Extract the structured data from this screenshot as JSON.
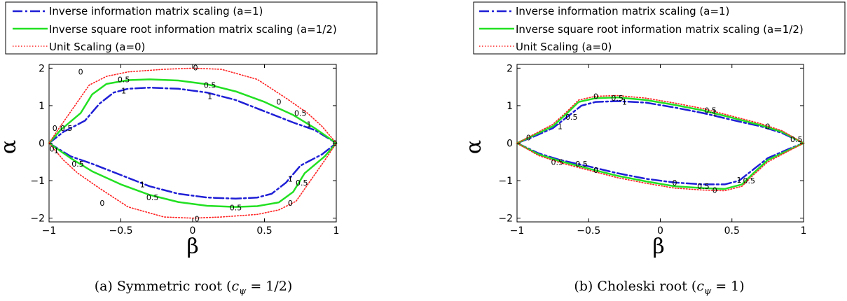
{
  "legend": [
    {
      "label": "Inverse information matrix scaling (a=1)",
      "color": "#1f1fd6",
      "style": "dashdot"
    },
    {
      "label": "Inverse square root information matrix scaling (a=1/2)",
      "color": "#22e022",
      "style": "solid"
    },
    {
      "label": "Unit Scaling (a=0)",
      "color": "#ff2222",
      "style": "dotted"
    }
  ],
  "chart_data": [
    {
      "type": "line",
      "caption": "(a) Symmetric root (c_ψ = 1/2)",
      "caption_parts": {
        "prefix": "(a) Symmetric root (",
        "c": "c",
        "sub": "ψ",
        "suffix": " = 1/2)"
      },
      "xlabel": "β",
      "ylabel": "α",
      "xlim": [
        -1,
        1
      ],
      "ylim": [
        -2.1,
        2.1
      ],
      "xticks": [
        -1,
        -0.5,
        0,
        0.5,
        1
      ],
      "xtick_labels": [
        "−1",
        "−0.5",
        "0",
        "0.5",
        "1"
      ],
      "yticks": [
        -2,
        -1,
        0,
        1,
        2
      ],
      "ytick_labels": [
        "−2",
        "−1",
        "0",
        "1",
        "2"
      ],
      "series": [
        {
          "name": "Inverse information matrix scaling (a=1)",
          "color": "#1f1fd6",
          "style": "dashdot",
          "upper": [
            [
              -1,
              0
            ],
            [
              -0.9,
              0.3
            ],
            [
              -0.75,
              0.6
            ],
            [
              -0.65,
              1.05
            ],
            [
              -0.55,
              1.35
            ],
            [
              -0.45,
              1.45
            ],
            [
              -0.3,
              1.48
            ],
            [
              -0.1,
              1.45
            ],
            [
              0.1,
              1.35
            ],
            [
              0.3,
              1.15
            ],
            [
              0.5,
              0.85
            ],
            [
              0.7,
              0.55
            ],
            [
              0.85,
              0.35
            ],
            [
              1,
              0
            ]
          ],
          "lower": [
            [
              -1,
              0
            ],
            [
              -0.85,
              -0.35
            ],
            [
              -0.7,
              -0.55
            ],
            [
              -0.5,
              -0.85
            ],
            [
              -0.3,
              -1.15
            ],
            [
              -0.1,
              -1.35
            ],
            [
              0.1,
              -1.45
            ],
            [
              0.3,
              -1.48
            ],
            [
              0.45,
              -1.45
            ],
            [
              0.55,
              -1.35
            ],
            [
              0.65,
              -1.05
            ],
            [
              0.75,
              -0.6
            ],
            [
              0.9,
              -0.3
            ],
            [
              1,
              0
            ]
          ]
        },
        {
          "name": "Inverse square root information matrix scaling (a=1/2)",
          "color": "#22e022",
          "style": "solid",
          "upper": [
            [
              -1,
              0
            ],
            [
              -0.92,
              0.35
            ],
            [
              -0.78,
              0.8
            ],
            [
              -0.7,
              1.3
            ],
            [
              -0.6,
              1.58
            ],
            [
              -0.45,
              1.68
            ],
            [
              -0.3,
              1.7
            ],
            [
              -0.1,
              1.67
            ],
            [
              0.1,
              1.57
            ],
            [
              0.3,
              1.38
            ],
            [
              0.5,
              1.1
            ],
            [
              0.7,
              0.75
            ],
            [
              0.85,
              0.4
            ],
            [
              1,
              0
            ]
          ],
          "lower": [
            [
              -1,
              0
            ],
            [
              -0.85,
              -0.4
            ],
            [
              -0.7,
              -0.75
            ],
            [
              -0.5,
              -1.1
            ],
            [
              -0.3,
              -1.38
            ],
            [
              -0.1,
              -1.57
            ],
            [
              0.1,
              -1.67
            ],
            [
              0.3,
              -1.7
            ],
            [
              0.45,
              -1.68
            ],
            [
              0.6,
              -1.58
            ],
            [
              0.7,
              -1.3
            ],
            [
              0.78,
              -0.8
            ],
            [
              0.92,
              -0.35
            ],
            [
              1,
              0
            ]
          ]
        },
        {
          "name": "Unit Scaling (a=0)",
          "color": "#ff2222",
          "style": "dotted",
          "upper": [
            [
              -1,
              0
            ],
            [
              -0.93,
              0.4
            ],
            [
              -0.82,
              1.0
            ],
            [
              -0.72,
              1.55
            ],
            [
              -0.6,
              1.78
            ],
            [
              -0.45,
              1.9
            ],
            [
              -0.2,
              1.97
            ],
            [
              0,
              2.0
            ],
            [
              0.2,
              1.97
            ],
            [
              0.45,
              1.7
            ],
            [
              0.65,
              1.2
            ],
            [
              0.8,
              0.8
            ],
            [
              0.9,
              0.45
            ],
            [
              1,
              0
            ]
          ],
          "lower": [
            [
              -1,
              0
            ],
            [
              -0.9,
              -0.45
            ],
            [
              -0.8,
              -0.8
            ],
            [
              -0.65,
              -1.2
            ],
            [
              -0.45,
              -1.7
            ],
            [
              -0.2,
              -1.97
            ],
            [
              0,
              -2.0
            ],
            [
              0.2,
              -1.97
            ],
            [
              0.45,
              -1.9
            ],
            [
              0.6,
              -1.78
            ],
            [
              0.72,
              -1.55
            ],
            [
              0.82,
              -1.0
            ],
            [
              0.93,
              -0.4
            ],
            [
              1,
              0
            ]
          ]
        }
      ],
      "contour_labels": [
        {
          "text": "0",
          "x": -0.78,
          "y": 1.9
        },
        {
          "text": "0.5",
          "x": -0.48,
          "y": 1.7
        },
        {
          "text": "1",
          "x": -0.48,
          "y": 1.4
        },
        {
          "text": "0",
          "x": 0.02,
          "y": 2.02
        },
        {
          "text": "0.5",
          "x": 0.12,
          "y": 1.55
        },
        {
          "text": "1",
          "x": 0.12,
          "y": 1.25
        },
        {
          "text": "0",
          "x": 0.6,
          "y": 1.1
        },
        {
          "text": "0.5",
          "x": 0.75,
          "y": 0.8
        },
        {
          "text": "1",
          "x": 0.81,
          "y": 0.5
        },
        {
          "text": "0",
          "x": -0.96,
          "y": 0.4
        },
        {
          "text": "0.5",
          "x": -0.88,
          "y": 0.4
        },
        {
          "text": "0",
          "x": -0.98,
          "y": -0.15
        },
        {
          "text": "1",
          "x": -0.95,
          "y": -0.2
        },
        {
          "text": "0.5",
          "x": -0.8,
          "y": -0.55
        },
        {
          "text": "1",
          "x": -0.35,
          "y": -1.1
        },
        {
          "text": "0",
          "x": -0.63,
          "y": -1.6
        },
        {
          "text": "0.5",
          "x": -0.28,
          "y": -1.45
        },
        {
          "text": "0",
          "x": 0.03,
          "y": -2.02
        },
        {
          "text": "0.5",
          "x": 0.3,
          "y": -1.72
        },
        {
          "text": "1",
          "x": 0.68,
          "y": -0.95
        },
        {
          "text": "0.5",
          "x": 0.76,
          "y": -1.05
        },
        {
          "text": "0",
          "x": 0.68,
          "y": -1.6
        },
        {
          "text": "0",
          "x": 0.99,
          "y": 0.0
        }
      ]
    },
    {
      "type": "line",
      "caption": "(b) Choleski root (c_ψ = 1)",
      "caption_parts": {
        "prefix": "(b) Choleski root (",
        "c": "c",
        "sub": "ψ",
        "suffix": " = 1)"
      },
      "xlabel": "β",
      "ylabel": "α",
      "xlim": [
        -1,
        1
      ],
      "ylim": [
        -2.1,
        2.1
      ],
      "xticks": [
        -1,
        -0.5,
        0,
        0.5,
        1
      ],
      "xtick_labels": [
        "−1",
        "−0.5",
        "0",
        "0.5",
        "1"
      ],
      "yticks": [
        -2,
        -1,
        0,
        1,
        2
      ],
      "ytick_labels": [
        "−2",
        "−1",
        "0",
        "1",
        "2"
      ],
      "series": [
        {
          "name": "Inverse information matrix scaling (a=1)",
          "color": "#1f1fd6",
          "style": "dashdot",
          "upper": [
            [
              -1,
              0
            ],
            [
              -0.9,
              0.15
            ],
            [
              -0.75,
              0.4
            ],
            [
              -0.65,
              0.7
            ],
            [
              -0.55,
              1.0
            ],
            [
              -0.45,
              1.1
            ],
            [
              -0.3,
              1.12
            ],
            [
              -0.1,
              1.08
            ],
            [
              0.1,
              0.95
            ],
            [
              0.3,
              0.8
            ],
            [
              0.5,
              0.62
            ],
            [
              0.7,
              0.45
            ],
            [
              0.85,
              0.27
            ],
            [
              1,
              0
            ]
          ],
          "lower": [
            [
              -1,
              0
            ],
            [
              -0.85,
              -0.27
            ],
            [
              -0.7,
              -0.45
            ],
            [
              -0.5,
              -0.62
            ],
            [
              -0.3,
              -0.8
            ],
            [
              -0.1,
              -0.95
            ],
            [
              0.1,
              -1.05
            ],
            [
              0.3,
              -1.1
            ],
            [
              0.45,
              -1.1
            ],
            [
              0.55,
              -1.0
            ],
            [
              0.65,
              -0.7
            ],
            [
              0.75,
              -0.4
            ],
            [
              0.9,
              -0.15
            ],
            [
              1,
              0
            ]
          ]
        },
        {
          "name": "Inverse square root information matrix scaling (a=1/2)",
          "color": "#22e022",
          "style": "solid",
          "upper": [
            [
              -1,
              0
            ],
            [
              -0.9,
              0.18
            ],
            [
              -0.75,
              0.45
            ],
            [
              -0.65,
              0.8
            ],
            [
              -0.57,
              1.1
            ],
            [
              -0.45,
              1.2
            ],
            [
              -0.3,
              1.22
            ],
            [
              -0.1,
              1.15
            ],
            [
              0.1,
              1.02
            ],
            [
              0.3,
              0.87
            ],
            [
              0.5,
              0.68
            ],
            [
              0.7,
              0.48
            ],
            [
              0.85,
              0.3
            ],
            [
              1,
              0
            ]
          ],
          "lower": [
            [
              -1,
              0
            ],
            [
              -0.85,
              -0.3
            ],
            [
              -0.7,
              -0.48
            ],
            [
              -0.5,
              -0.68
            ],
            [
              -0.3,
              -0.87
            ],
            [
              -0.1,
              -1.02
            ],
            [
              0.1,
              -1.15
            ],
            [
              0.3,
              -1.2
            ],
            [
              0.45,
              -1.22
            ],
            [
              0.57,
              -1.1
            ],
            [
              0.65,
              -0.8
            ],
            [
              0.75,
              -0.45
            ],
            [
              0.9,
              -0.18
            ],
            [
              1,
              0
            ]
          ]
        },
        {
          "name": "Unit Scaling (a=0)",
          "color": "#ff2222",
          "style": "dotted",
          "upper": [
            [
              -1,
              0
            ],
            [
              -0.9,
              0.2
            ],
            [
              -0.75,
              0.5
            ],
            [
              -0.65,
              0.85
            ],
            [
              -0.57,
              1.15
            ],
            [
              -0.45,
              1.25
            ],
            [
              -0.3,
              1.27
            ],
            [
              -0.1,
              1.2
            ],
            [
              0.1,
              1.07
            ],
            [
              0.3,
              0.92
            ],
            [
              0.5,
              0.72
            ],
            [
              0.7,
              0.52
            ],
            [
              0.85,
              0.33
            ],
            [
              1,
              0
            ]
          ],
          "lower": [
            [
              -1,
              0
            ],
            [
              -0.85,
              -0.33
            ],
            [
              -0.7,
              -0.52
            ],
            [
              -0.5,
              -0.72
            ],
            [
              -0.3,
              -0.92
            ],
            [
              -0.1,
              -1.07
            ],
            [
              0.1,
              -1.2
            ],
            [
              0.3,
              -1.25
            ],
            [
              0.45,
              -1.27
            ],
            [
              0.57,
              -1.15
            ],
            [
              0.65,
              -0.85
            ],
            [
              0.75,
              -0.5
            ],
            [
              0.9,
              -0.2
            ],
            [
              1,
              0
            ]
          ]
        }
      ],
      "contour_labels": [
        {
          "text": "0.5",
          "x": -0.62,
          "y": 0.7
        },
        {
          "text": "1",
          "x": -0.7,
          "y": 0.45
        },
        {
          "text": "0",
          "x": -0.92,
          "y": 0.15
        },
        {
          "text": "0",
          "x": -0.45,
          "y": 1.25
        },
        {
          "text": "0.5",
          "x": -0.3,
          "y": 1.2
        },
        {
          "text": "1",
          "x": -0.25,
          "y": 1.1
        },
        {
          "text": "0.5",
          "x": 0.35,
          "y": 0.88
        },
        {
          "text": "1",
          "x": 0.38,
          "y": 0.8
        },
        {
          "text": "0",
          "x": 0.75,
          "y": 0.45
        },
        {
          "text": "0.5",
          "x": 0.95,
          "y": 0.1
        },
        {
          "text": "0.5",
          "x": -0.72,
          "y": -0.5
        },
        {
          "text": "0.5",
          "x": -0.55,
          "y": -0.55
        },
        {
          "text": "0",
          "x": -0.45,
          "y": -0.72
        },
        {
          "text": "0",
          "x": 0.1,
          "y": -1.05
        },
        {
          "text": "0.5",
          "x": 0.3,
          "y": -1.15
        },
        {
          "text": "0",
          "x": 0.38,
          "y": -1.25
        },
        {
          "text": "1",
          "x": 0.55,
          "y": -0.98
        },
        {
          "text": "0.5",
          "x": 0.62,
          "y": -1.0
        }
      ]
    }
  ]
}
